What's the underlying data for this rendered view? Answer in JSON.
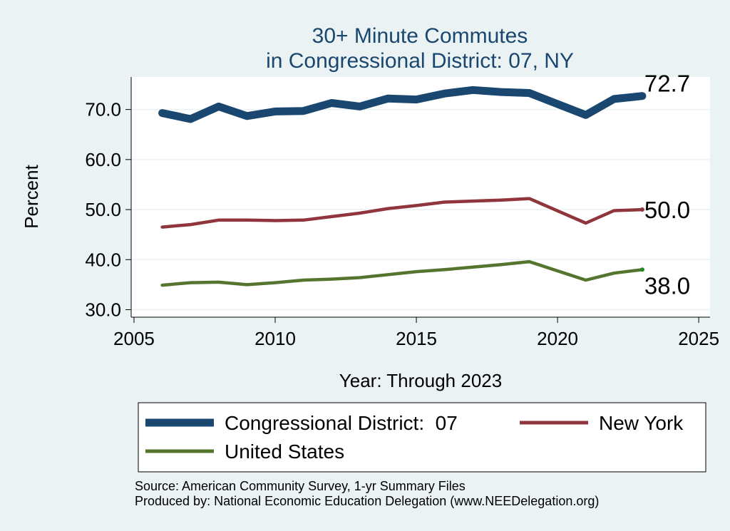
{
  "chart_data": {
    "type": "line",
    "title": "30+ Minute Commutes",
    "subtitle": "in Congressional District:  07, NY",
    "xlabel": "Year: Through 2023",
    "ylabel": "Percent",
    "xlim": [
      2004.9,
      2025.4
    ],
    "ylim": [
      28.5,
      76.5
    ],
    "x_ticks": [
      "2005",
      "2010",
      "2015",
      "2020",
      "2025"
    ],
    "y_ticks": [
      "30.0",
      "40.0",
      "50.0",
      "60.0",
      "70.0"
    ],
    "grid": true,
    "legend_position": "bottom",
    "x": [
      2006,
      2007,
      2008,
      2009,
      2010,
      2011,
      2012,
      2013,
      2014,
      2015,
      2016,
      2017,
      2018,
      2019,
      2021,
      2022,
      2023
    ],
    "series": [
      {
        "name": "Congressional District:  07",
        "color": "#1a476f",
        "values": [
          69.3,
          68.1,
          70.6,
          68.7,
          69.6,
          69.7,
          71.3,
          70.6,
          72.2,
          72.0,
          73.2,
          73.9,
          73.5,
          73.3,
          68.9,
          72.1,
          72.7
        ],
        "end_label": "72.7"
      },
      {
        "name": "New York",
        "color": "#90353b",
        "values": [
          46.5,
          47.0,
          47.9,
          47.9,
          47.8,
          47.9,
          48.6,
          49.3,
          50.2,
          50.8,
          51.5,
          51.7,
          51.9,
          52.2,
          47.3,
          49.8,
          50.0
        ],
        "end_label": "50.0"
      },
      {
        "name": "United States",
        "color": "#55752f",
        "values": [
          34.9,
          35.4,
          35.5,
          35.0,
          35.4,
          35.9,
          36.1,
          36.4,
          37.0,
          37.6,
          38.0,
          38.5,
          39.0,
          39.6,
          35.9,
          37.3,
          38.0
        ],
        "end_label": "38.0"
      }
    ]
  },
  "footer": {
    "source": "Source: American Community Survey, 1-yr Summary Files",
    "produced_by": "Produced by: National Economic Education Delegation (www.NEEDelegation.org)"
  },
  "colors": {
    "background": "#eaf2f3",
    "plot_background": "#ffffff",
    "title": "#1a476f",
    "grid": "#eaf2f3"
  }
}
